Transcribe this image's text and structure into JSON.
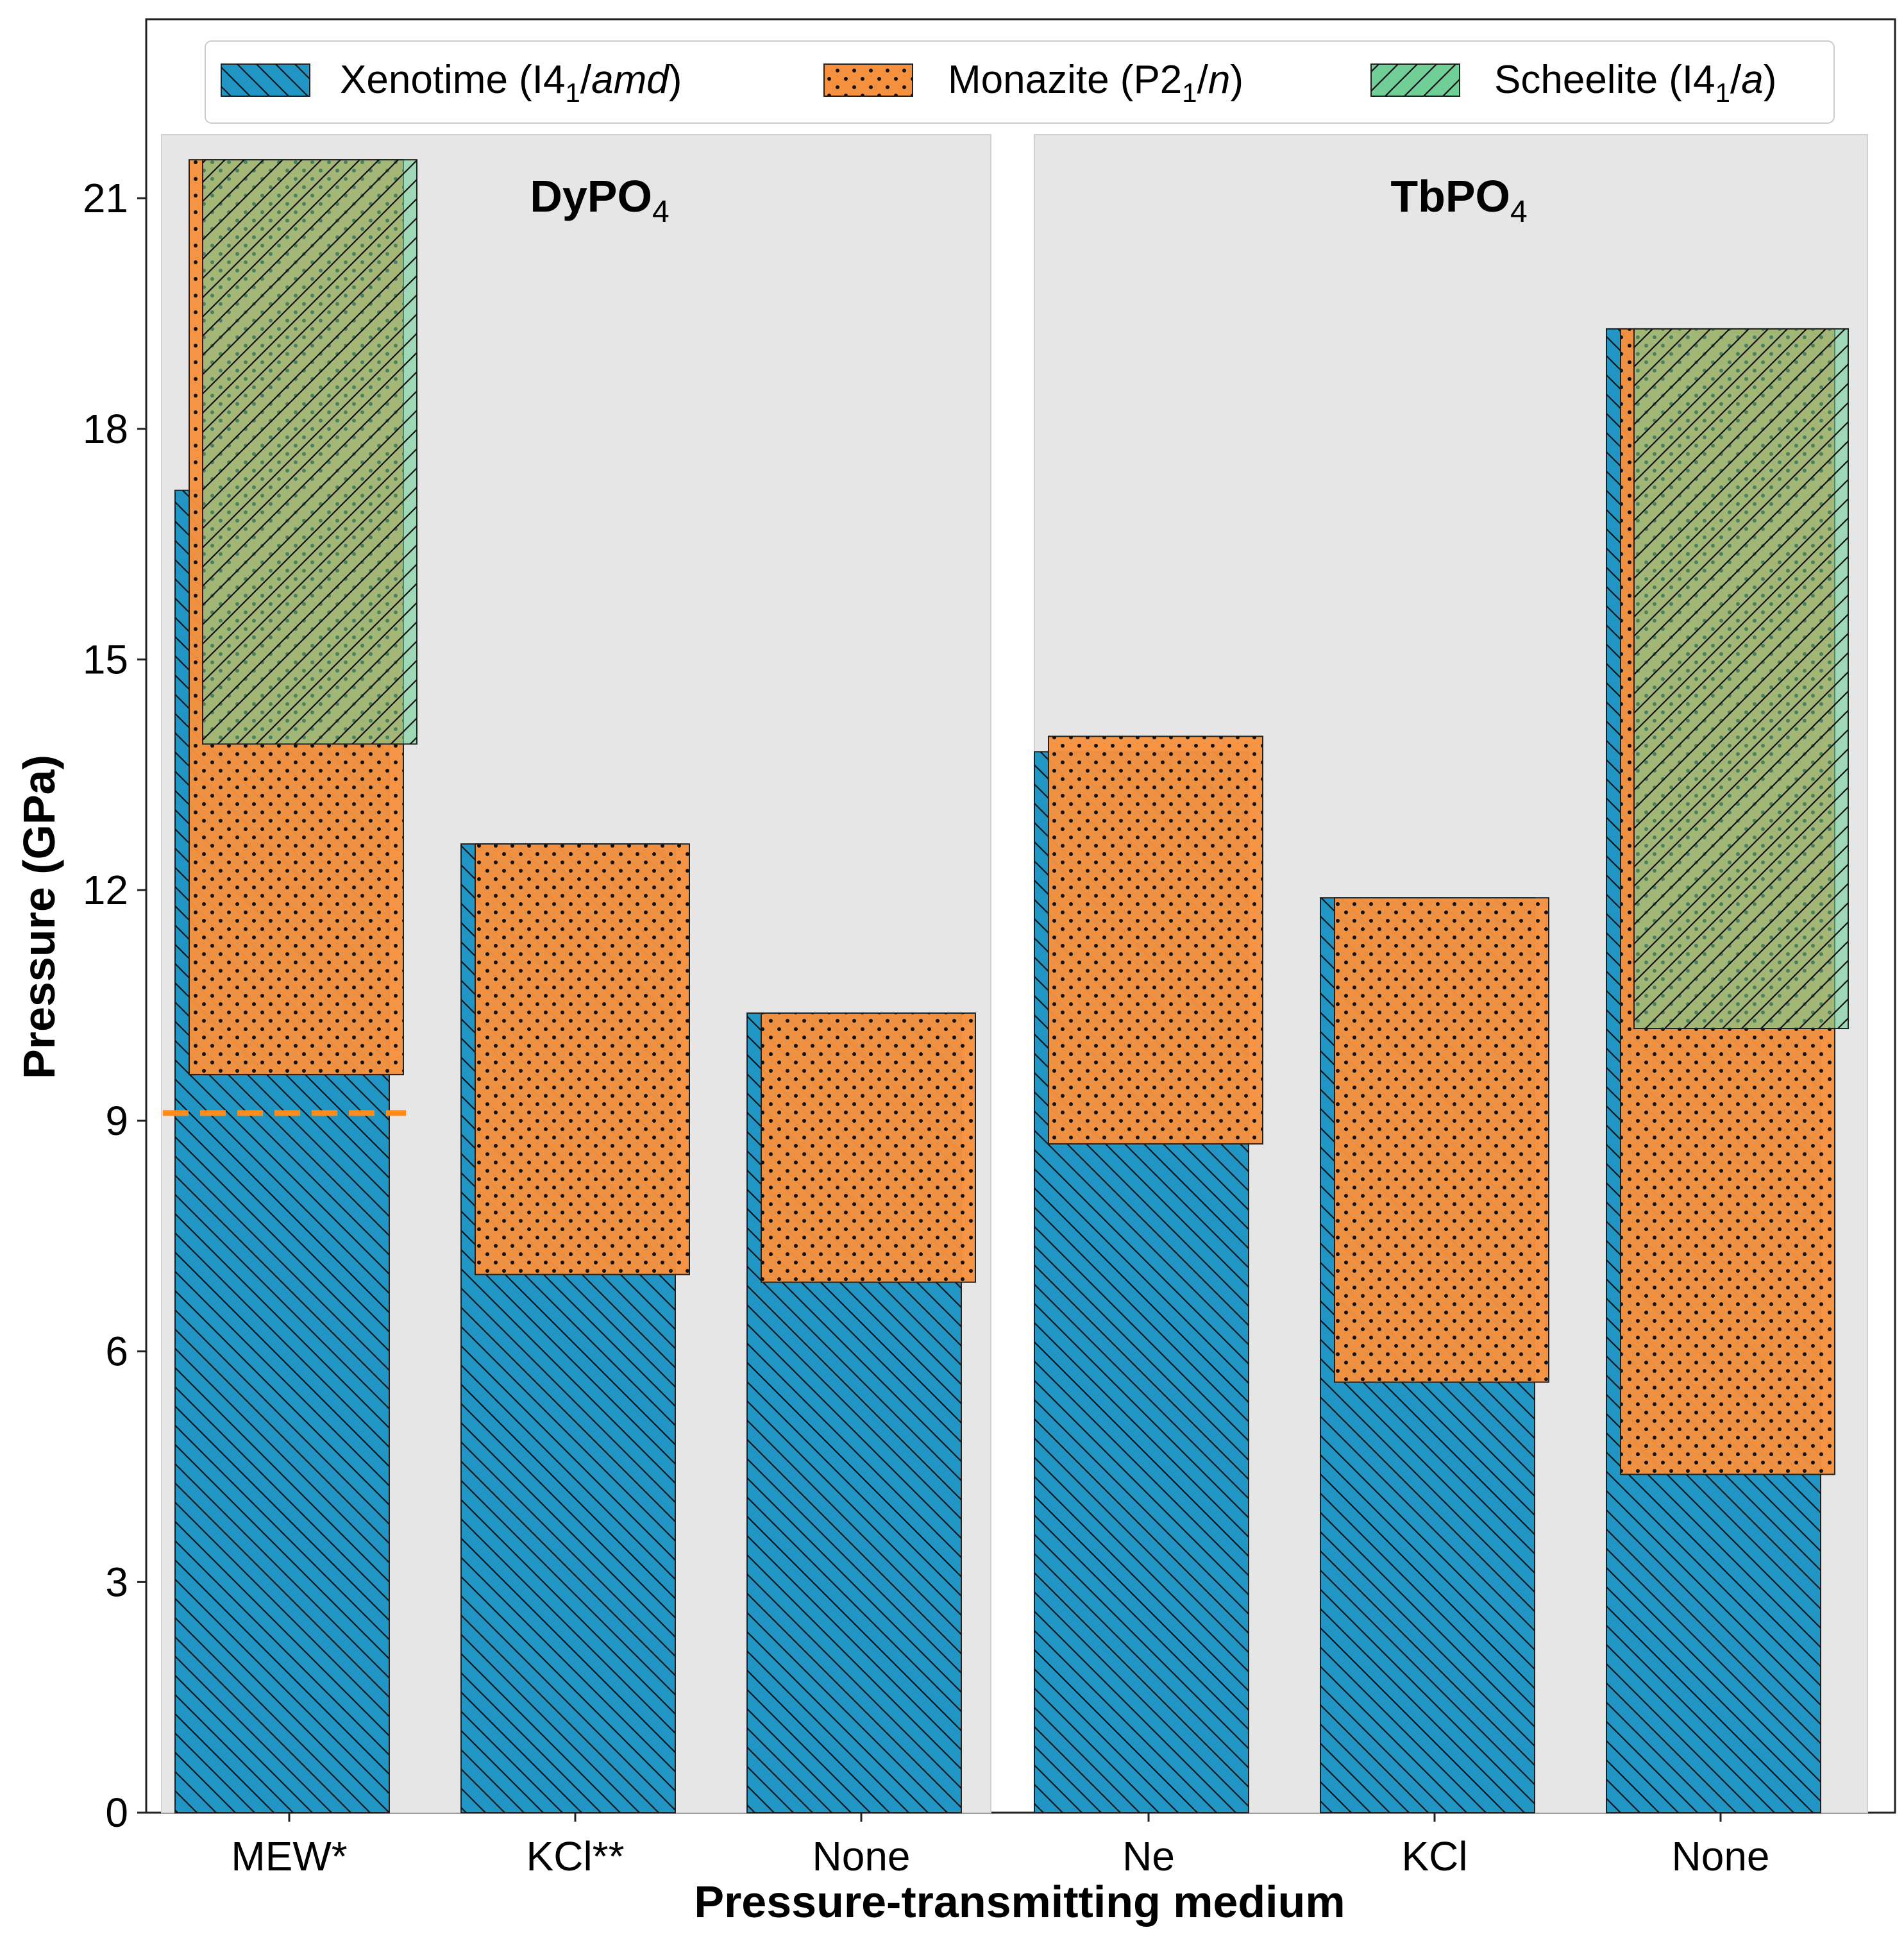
{
  "chart_data": {
    "type": "bar",
    "ylabel": "Pressure (GPa)",
    "xlabel": "Pressure-transmitting medium",
    "ylim": [
      0,
      22.8
    ],
    "yticks": [
      0,
      3,
      6,
      9,
      12,
      15,
      18,
      21
    ],
    "legend": {
      "placement": "top",
      "entries": [
        {
          "key": "xenotime",
          "base": "Xenotime (I4",
          "sub": "1",
          "slash": "/",
          "ital": "amd",
          "end": ")"
        },
        {
          "key": "monazite",
          "base": "Monazite (P2",
          "sub": "1",
          "slash": "/",
          "ital": "n",
          "end": ")"
        },
        {
          "key": "scheelite",
          "base": "Scheelite (I4",
          "sub": "1",
          "slash": "/",
          "ital": "a",
          "end": ")"
        }
      ]
    },
    "colors": {
      "xenotime": "#2196c4",
      "monazite": "#f5913e",
      "scheelite": "#6fcf97",
      "panel_bg": "#e6e6e6",
      "dashed": "#ff8c1a"
    },
    "panels": [
      {
        "title_main": "DyPO",
        "title_sub": "4",
        "categories": [
          {
            "label": "MEW*",
            "xenotime": [
              0,
              17.2
            ],
            "monazite": [
              9.6,
              21.5
            ],
            "scheelite": [
              13.9,
              21.5
            ],
            "dashed_line": 9.1
          },
          {
            "label": "KCl**",
            "xenotime": [
              0,
              12.6
            ],
            "monazite": [
              7.0,
              12.6
            ],
            "scheelite": null
          },
          {
            "label": "None",
            "xenotime": [
              0,
              10.4
            ],
            "monazite": [
              6.9,
              10.4
            ],
            "scheelite": null
          }
        ]
      },
      {
        "title_main": "TbPO",
        "title_sub": "4",
        "categories": [
          {
            "label": "Ne",
            "xenotime": [
              0,
              13.8
            ],
            "monazite": [
              8.7,
              14.0
            ],
            "scheelite": null
          },
          {
            "label": "KCl",
            "xenotime": [
              0,
              11.9
            ],
            "monazite": [
              5.6,
              11.9
            ],
            "scheelite": null
          },
          {
            "label": "None",
            "xenotime": [
              0,
              19.3
            ],
            "monazite": [
              4.4,
              19.3
            ],
            "scheelite": [
              10.2,
              19.3
            ]
          }
        ]
      }
    ]
  }
}
